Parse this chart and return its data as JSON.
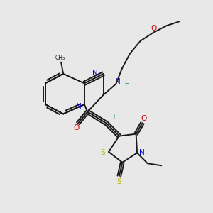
{
  "background_color": "#e8e8e8",
  "bond_color": "#1a1a1a",
  "nitrogen_color": "#0000cc",
  "oxygen_color": "#cc0000",
  "sulfur_color": "#b8b800",
  "nh_color": "#008080",
  "figsize": [
    3.0,
    3.0
  ],
  "dpi": 100,
  "xlim": [
    0,
    10
  ],
  "ylim": [
    0,
    10
  ]
}
